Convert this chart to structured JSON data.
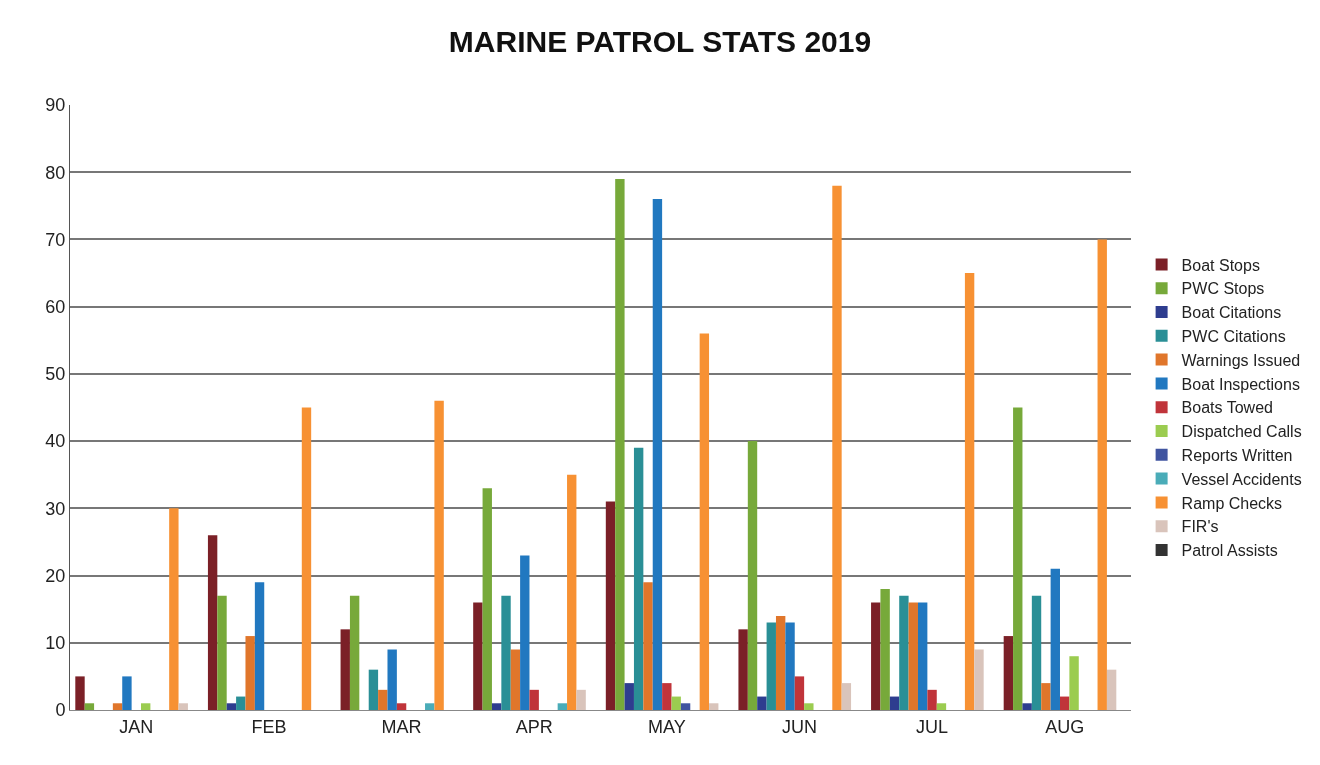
{
  "chart_data": {
    "type": "bar",
    "title": "MARINE PATROL STATS 2019",
    "categories": [
      "JAN",
      "FEB",
      "MAR",
      "APR",
      "MAY",
      "JUN",
      "JUL",
      "AUG"
    ],
    "ylim": [
      0,
      90
    ],
    "yticks": [
      0,
      10,
      20,
      30,
      40,
      50,
      60,
      70,
      80,
      90
    ],
    "grid": "y",
    "legend": "right",
    "series": [
      {
        "name": "Boat Stops",
        "color": "#7b2027",
        "values": [
          5,
          26,
          12,
          16,
          31,
          12,
          16,
          11
        ]
      },
      {
        "name": "PWC Stops",
        "color": "#77a93a",
        "values": [
          1,
          17,
          17,
          33,
          79,
          40,
          18,
          45
        ]
      },
      {
        "name": "Boat Citations",
        "color": "#2e3d8f",
        "values": [
          0,
          1,
          0,
          1,
          4,
          2,
          2,
          1
        ]
      },
      {
        "name": "PWC Citations",
        "color": "#2a8f96",
        "values": [
          0,
          2,
          6,
          17,
          39,
          13,
          17,
          17
        ]
      },
      {
        "name": "Warnings Issued",
        "color": "#e0762b",
        "values": [
          1,
          11,
          3,
          9,
          19,
          14,
          16,
          4
        ]
      },
      {
        "name": "Boat Inspections",
        "color": "#2178c0",
        "values": [
          5,
          19,
          9,
          23,
          76,
          13,
          16,
          21
        ]
      },
      {
        "name": "Boats Towed",
        "color": "#c0343a",
        "values": [
          0,
          0,
          1,
          3,
          4,
          5,
          3,
          2
        ]
      },
      {
        "name": "Dispatched Calls",
        "color": "#9bcc50",
        "values": [
          1,
          0,
          0,
          0,
          2,
          1,
          1,
          8
        ]
      },
      {
        "name": "Reports Written",
        "color": "#4054a0",
        "values": [
          0,
          0,
          0,
          0,
          1,
          0,
          0,
          0
        ]
      },
      {
        "name": "Vessel Accidents",
        "color": "#4aacb8",
        "values": [
          0,
          0,
          1,
          1,
          0,
          0,
          0,
          0
        ]
      },
      {
        "name": "Ramp Checks",
        "color": "#f79133",
        "values": [
          30,
          45,
          46,
          35,
          56,
          78,
          65,
          70
        ]
      },
      {
        "name": "FIR's",
        "color": "#d9c4bb",
        "values": [
          1,
          0,
          0,
          3,
          1,
          4,
          9,
          6
        ]
      },
      {
        "name": "Patrol Assists",
        "color": "#333333",
        "values": [
          0,
          0,
          0,
          0,
          0,
          0,
          0,
          0
        ]
      }
    ]
  }
}
